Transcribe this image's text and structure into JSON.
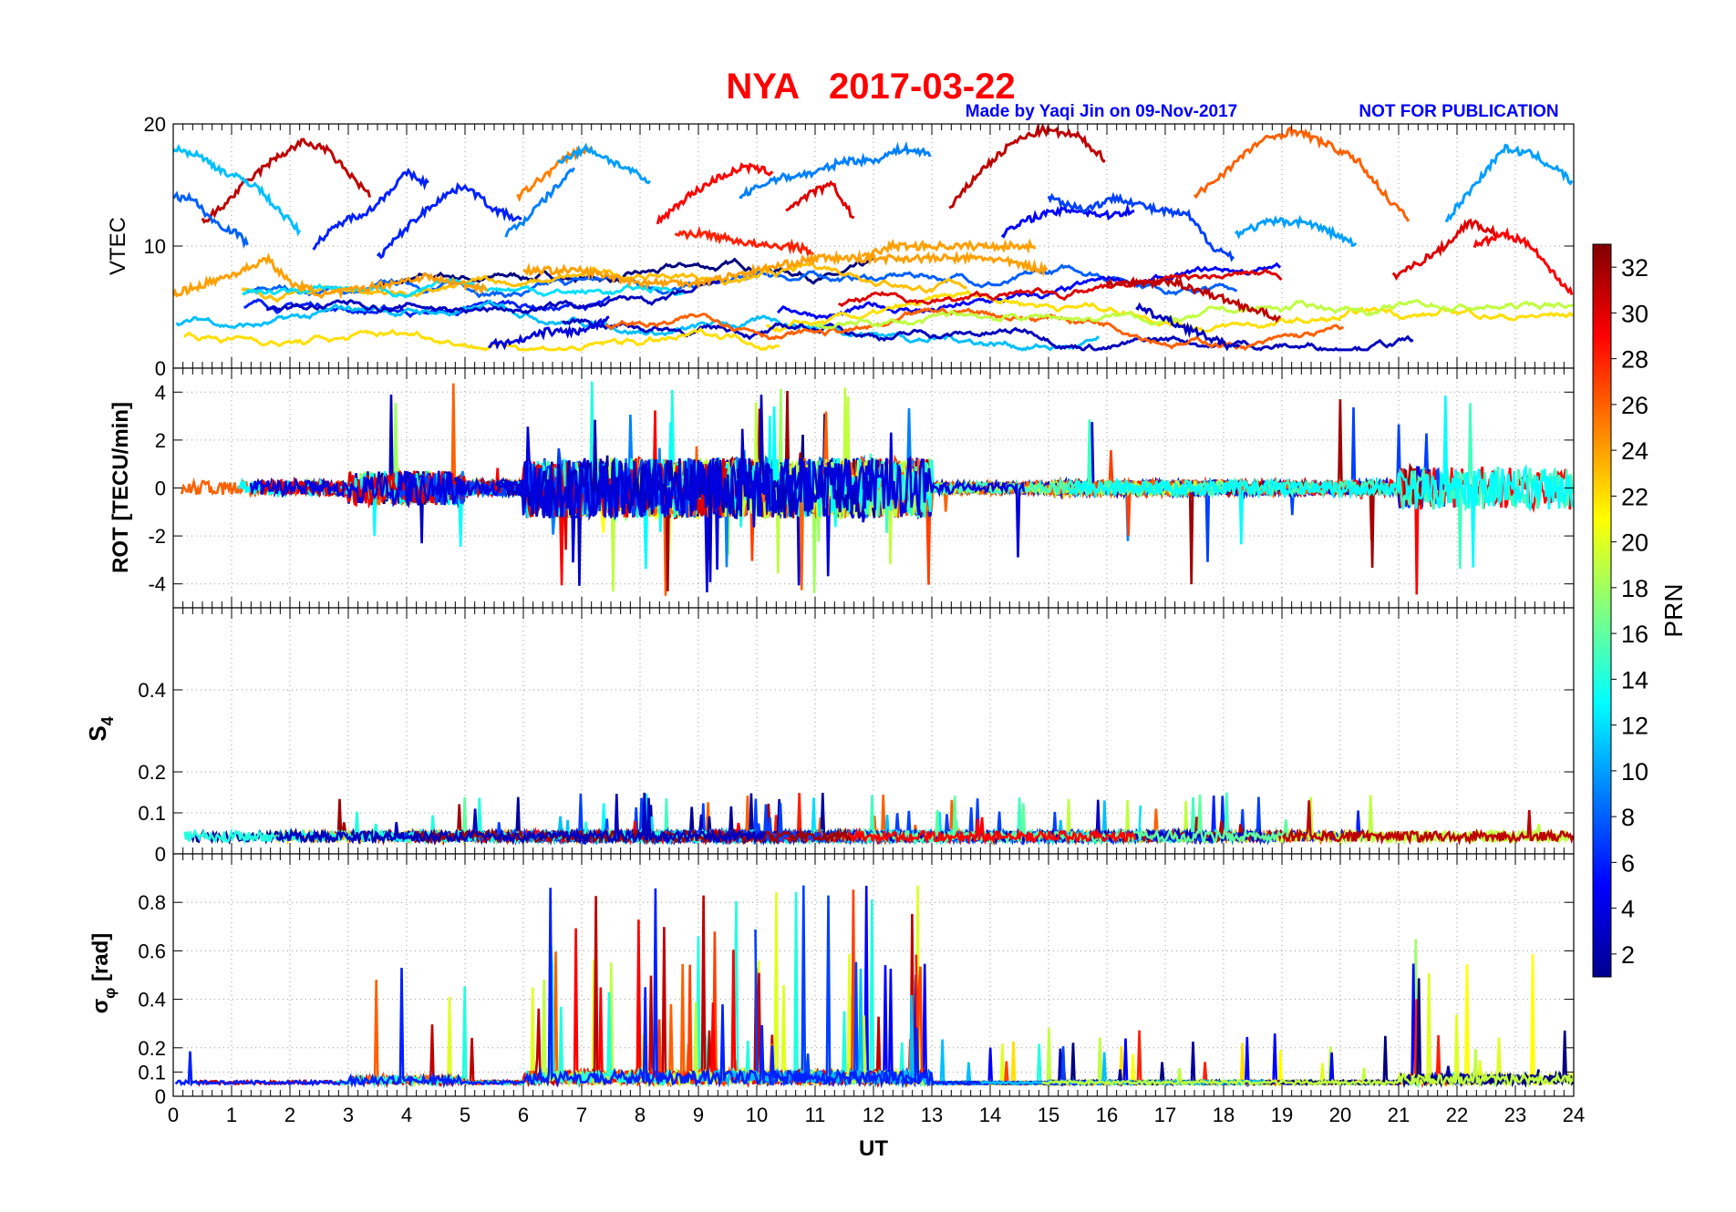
{
  "header": {
    "title": "NYA   2017-03-22",
    "credit": "Made by Yaqi Jin on 09-Nov-2017",
    "notice": "NOT FOR PUBLICATION",
    "title_color": "#ff0000",
    "credit_color": "#0000ff"
  },
  "chart_data": [
    {
      "type": "line",
      "panel": "vtec",
      "ylabel": "VTEC",
      "xlim": [
        0,
        24
      ],
      "ylim": [
        0,
        20
      ],
      "yticks": [
        0,
        10,
        20
      ],
      "grid": true,
      "color_by": "PRN"
    },
    {
      "type": "line",
      "panel": "rot",
      "ylabel": "ROT [TECU/min]",
      "xlim": [
        0,
        24
      ],
      "ylim": [
        -5,
        5
      ],
      "yticks": [
        -4,
        -2,
        0,
        2,
        4
      ],
      "grid": true,
      "color_by": "PRN"
    },
    {
      "type": "line",
      "panel": "s4",
      "ylabel": "S",
      "ylabel_sub": "4",
      "xlim": [
        0,
        24
      ],
      "ylim": [
        0,
        0.6
      ],
      "yticks": [
        0,
        0.1,
        0.2,
        0.4
      ],
      "grid": true,
      "color_by": "PRN"
    },
    {
      "type": "line",
      "panel": "sigma_phi",
      "ylabel": "σ",
      "ylabel_sub": "φ",
      "ylabel_tail": " [rad]",
      "xlabel": "UT",
      "xlim": [
        0,
        24
      ],
      "ylim": [
        0,
        1.0
      ],
      "yticks": [
        0,
        0.1,
        0.2,
        0.4,
        0.6,
        0.8
      ],
      "xticks": [
        0,
        1,
        2,
        3,
        4,
        5,
        6,
        7,
        8,
        9,
        10,
        11,
        12,
        13,
        14,
        15,
        16,
        17,
        18,
        19,
        20,
        21,
        22,
        23,
        24
      ],
      "grid": true,
      "color_by": "PRN"
    }
  ],
  "colorbar": {
    "label": "PRN",
    "range": [
      1,
      33
    ],
    "ticks": [
      2,
      4,
      6,
      8,
      10,
      12,
      14,
      16,
      18,
      20,
      22,
      24,
      26,
      28,
      30,
      32
    ],
    "colormap": "jet"
  },
  "series_colors": {
    "vtec": [
      {
        "prn": 31,
        "x": [
          0.5,
          0.8,
          1.2,
          1.7,
          2.2,
          2.6,
          3.0,
          3.4
        ],
        "y": [
          12,
          13,
          15,
          17,
          18.5,
          18,
          16,
          14
        ]
      },
      {
        "prn": 31,
        "x": [
          13.3,
          13.8,
          14.4,
          14.9,
          15.5,
          16.0
        ],
        "y": [
          13,
          16,
          18.5,
          19.5,
          19,
          17
        ]
      },
      {
        "prn": 11,
        "x": [
          0,
          0.4,
          0.9,
          1.4,
          1.9,
          2.2
        ],
        "y": [
          18,
          17.5,
          16,
          15,
          12.5,
          11
        ]
      },
      {
        "prn": 8,
        "x": [
          0,
          0.3,
          0.7,
          1.1,
          1.3
        ],
        "y": [
          14,
          14,
          12,
          11,
          10
        ]
      },
      {
        "prn": 6,
        "x": [
          2.4,
          2.9,
          3.4,
          4.0,
          4.4
        ],
        "y": [
          10,
          12,
          13,
          16,
          15
        ]
      },
      {
        "prn": 6,
        "x": [
          3.5,
          4.1,
          4.6,
          5.0,
          5.5,
          6.0
        ],
        "y": [
          9,
          12,
          14,
          15,
          13,
          12
        ]
      },
      {
        "prn": 25,
        "x": [
          5.9,
          6.3,
          6.8,
          7.2
        ],
        "y": [
          14,
          15.5,
          17.5,
          18
        ]
      },
      {
        "prn": 9,
        "x": [
          5.7,
          6.0,
          6.5,
          6.9
        ],
        "y": [
          11,
          12,
          14.5,
          16.5
        ]
      },
      {
        "prn": 10,
        "x": [
          6.6,
          7.1,
          7.5,
          7.9,
          8.2
        ],
        "y": [
          17,
          18,
          17,
          16,
          15
        ]
      },
      {
        "prn": 29,
        "x": [
          8.3,
          8.8,
          9.3,
          9.8,
          10.3
        ],
        "y": [
          12,
          14,
          15.5,
          16.5,
          16
        ]
      },
      {
        "prn": 30,
        "x": [
          10.5,
          11.0,
          11.3,
          11.7
        ],
        "y": [
          13,
          14.5,
          15,
          12
        ]
      },
      {
        "prn": 9,
        "x": [
          9.7,
          10.3,
          11.0,
          11.5,
          12.0,
          12.5,
          13.0
        ],
        "y": [
          14,
          15.5,
          16,
          17,
          17,
          18,
          17.5
        ]
      },
      {
        "prn": 28,
        "x": [
          8.6,
          9.1,
          9.6,
          10.1,
          10.6,
          11.0
        ],
        "y": [
          11,
          11,
          10.5,
          10,
          10,
          9.5
        ]
      },
      {
        "prn": 24,
        "x": [
          11.8,
          12.3,
          12.9,
          13.5,
          14.2,
          14.8
        ],
        "y": [
          9,
          10,
          10,
          10,
          10,
          10
        ]
      },
      {
        "prn": 5,
        "x": [
          14.2,
          14.8,
          15.4,
          16.0,
          16.5
        ],
        "y": [
          11,
          12.5,
          13,
          12.5,
          13
        ]
      },
      {
        "prn": 7,
        "x": [
          15.0,
          15.6,
          16.2,
          16.8,
          17.4,
          17.8,
          18.2
        ],
        "y": [
          14,
          13,
          14,
          13,
          12.5,
          10,
          9
        ]
      },
      {
        "prn": 10,
        "x": [
          18.2,
          18.8,
          19.4,
          19.9,
          20.3
        ],
        "y": [
          11,
          12,
          12,
          11,
          10
        ]
      },
      {
        "prn": 26,
        "x": [
          17.5,
          18.0,
          18.6,
          19.2,
          19.7,
          20.3,
          20.8,
          21.2
        ],
        "y": [
          14,
          16,
          18.5,
          19.5,
          18.5,
          17,
          14,
          12
        ]
      },
      {
        "prn": 30,
        "x": [
          20.9,
          21.3,
          21.8,
          22.2,
          22.7
        ],
        "y": [
          7.5,
          8.5,
          10,
          12,
          11
        ]
      },
      {
        "prn": 29,
        "x": [
          22.3,
          22.8,
          23.3,
          23.6,
          24
        ],
        "y": [
          10,
          11,
          10,
          8,
          6
        ]
      },
      {
        "prn": 10,
        "x": [
          21.8,
          22.3,
          22.8,
          23.3,
          23.8,
          24
        ],
        "y": [
          12,
          15,
          18,
          17.5,
          16,
          15
        ]
      },
      {
        "prn": 24,
        "x": [
          0,
          0.6,
          1.2,
          1.6,
          2.0,
          2.6,
          3.2,
          3.8,
          4.3,
          4.8,
          5.4
        ],
        "y": [
          6,
          7,
          8,
          9,
          7,
          6,
          6.5,
          7,
          7.5,
          7,
          6.5
        ]
      },
      {
        "prn": 24,
        "x": [
          6.0,
          7.0,
          8.0,
          9.0,
          10.0,
          11.0,
          12.0,
          13.0,
          14.0,
          15.0
        ],
        "y": [
          8,
          8,
          7,
          7,
          8,
          9,
          9,
          9,
          9,
          8
        ]
      },
      {
        "prn": 31,
        "x": [
          16.0,
          16.6,
          17.2,
          17.8,
          18.4,
          19.0
        ],
        "y": [
          7,
          7,
          7,
          6,
          5,
          4
        ]
      },
      {
        "prn": 3,
        "x": [
          16.5,
          17.0,
          17.5,
          18.0,
          18.3
        ],
        "y": [
          5,
          4,
          3,
          2,
          1.5
        ]
      },
      {
        "prn": 4,
        "x": [
          5.4,
          5.8,
          6.4,
          7.0,
          7.5
        ],
        "y": [
          2,
          2,
          3,
          3,
          4
        ]
      }
    ]
  }
}
